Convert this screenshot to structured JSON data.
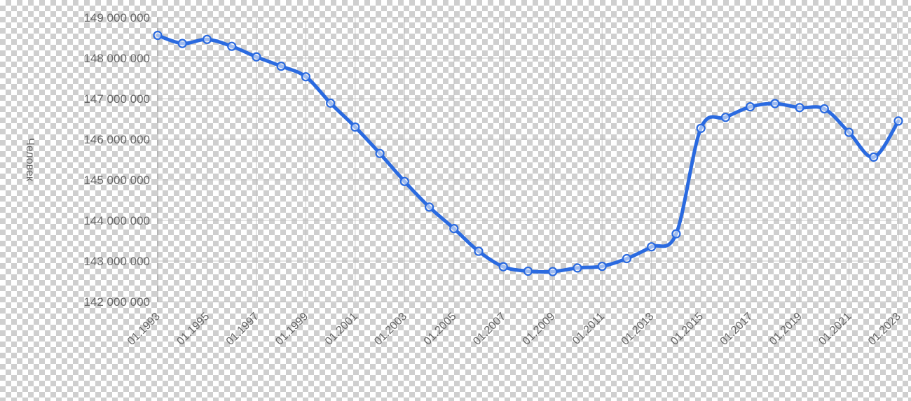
{
  "chart_data": {
    "type": "line",
    "title": "",
    "xlabel": "",
    "ylabel": "Человек",
    "x_ticks": [
      "01.1993",
      "01.1995",
      "01.1997",
      "01.1999",
      "01.2001",
      "01.2003",
      "01.2005",
      "01.2007",
      "01.2009",
      "01.2011",
      "01.2013",
      "01.2015",
      "01.2017",
      "01.2019",
      "01.2021",
      "01.2023"
    ],
    "y_ticks": [
      "149 000 000",
      "148 000 000",
      "147 000 000",
      "146 000 000",
      "145 000 000",
      "144 000 000",
      "143 000 000",
      "142 000 000"
    ],
    "ylim": [
      142000000,
      149000000
    ],
    "xlim": [
      1993,
      2023
    ],
    "grid": true,
    "line_color": "#2a6ae0",
    "series": [
      {
        "x": [
          "01.1993",
          "01.1994",
          "01.1995",
          "01.1996",
          "01.1997",
          "01.1998",
          "01.1999",
          "01.2000",
          "01.2001",
          "01.2002",
          "01.2003",
          "01.2004",
          "01.2005",
          "01.2006",
          "01.2007",
          "01.2008",
          "01.2009",
          "01.2010",
          "01.2011",
          "01.2012",
          "01.2013",
          "01.2014",
          "01.2015",
          "01.2016",
          "01.2017",
          "01.2018",
          "01.2019",
          "01.2020",
          "01.2021",
          "01.2022",
          "01.2023"
        ],
        "values": [
          148560000,
          148360000,
          148460000,
          148290000,
          148030000,
          147800000,
          147540000,
          146890000,
          146300000,
          145650000,
          144960000,
          144330000,
          143800000,
          143240000,
          142860000,
          142750000,
          142740000,
          142830000,
          142870000,
          143060000,
          143350000,
          143670000,
          146270000,
          146540000,
          146800000,
          146880000,
          146780000,
          146750000,
          146170000,
          145560000,
          146450000
        ]
      }
    ]
  }
}
